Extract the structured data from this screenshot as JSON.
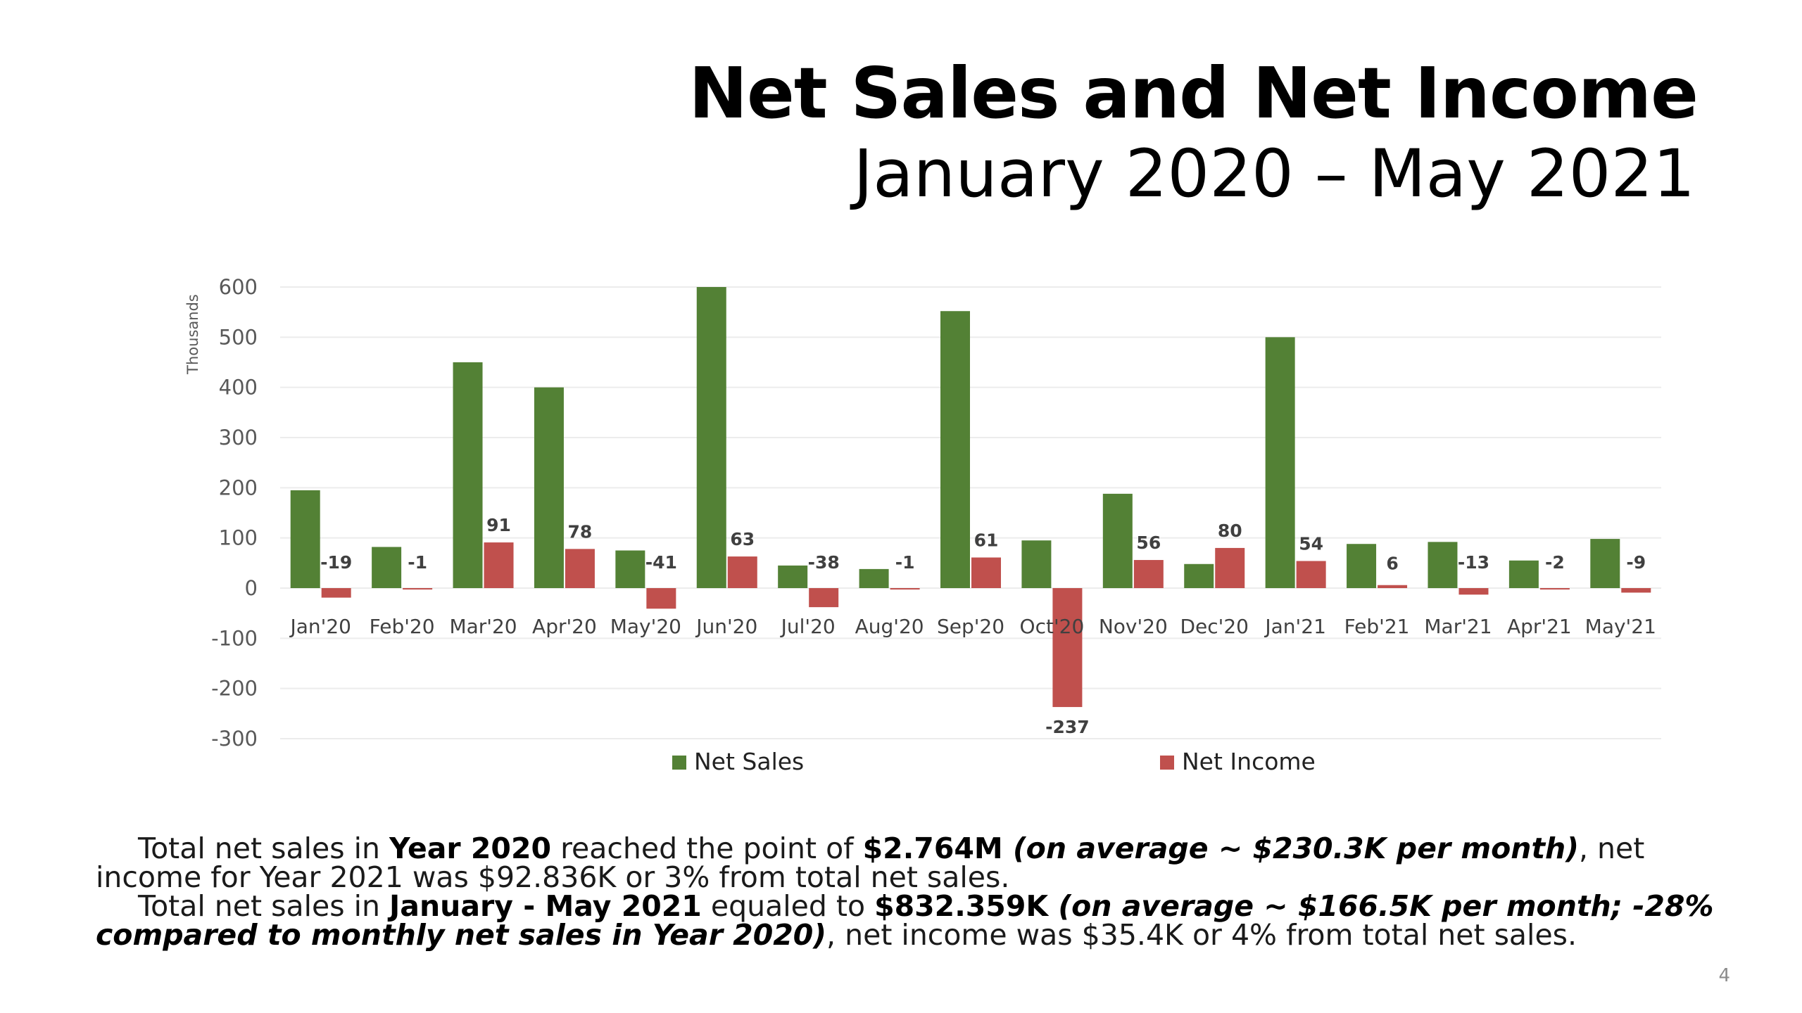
{
  "slide": {
    "title": "Net Sales and Net Income",
    "subtitle": "January 2020 – May 2021",
    "page_number": "4"
  },
  "summary": {
    "p1_intro": "Total net sales in ",
    "p1_year": "Year 2020",
    "p1_mid": " reached the point of ",
    "p1_total": "$2.764M",
    "p1_avg": " (on average ~ $230.3K per month)",
    "p1_end": ", net income for Year 2021 was $92.836K or 3% from total net sales.",
    "p2_intro": "Total net sales in ",
    "p2_period": "January - May 2021",
    "p2_mid": " equaled to ",
    "p2_total": "$832.359K",
    "p2_avg": " (on average ~ $166.5K per month; -28% compared to monthly net sales in Year 2020)",
    "p2_end": ", net income was $35.4K or 4% from total net sales."
  },
  "colors": {
    "net_sales": "#538135",
    "net_income": "#c0504d",
    "gridline": "#ececec"
  },
  "chart_data": {
    "type": "bar",
    "title": "",
    "xlabel": "",
    "ylabel": "Thousands",
    "ylim": [
      -300,
      600
    ],
    "yticks": [
      -300,
      -200,
      -100,
      0,
      100,
      200,
      300,
      400,
      500,
      600
    ],
    "grid": true,
    "legend_position": "bottom",
    "categories": [
      "Jan'20",
      "Feb'20",
      "Mar'20",
      "Apr'20",
      "May'20",
      "Jun'20",
      "Jul'20",
      "Aug'20",
      "Sep'20",
      "Oct'20",
      "Nov'20",
      "Dec'20",
      "Jan'21",
      "Feb'21",
      "Mar'21",
      "Apr'21",
      "May'21"
    ],
    "series": [
      {
        "name": "Net Sales",
        "values": [
          195,
          82,
          450,
          400,
          75,
          600,
          45,
          38,
          552,
          95,
          188,
          48,
          500,
          88,
          92,
          55,
          98
        ]
      },
      {
        "name": "Net Income",
        "values": [
          -19,
          -1,
          91,
          78,
          -41,
          63,
          -38,
          -1,
          61,
          -237,
          56,
          80,
          54,
          6,
          -13,
          -2,
          -9
        ],
        "data_labels": [
          "-19",
          "-1",
          "91",
          "78",
          "-41",
          "63",
          "-38",
          "-1",
          "61",
          "-237",
          "56",
          "80",
          "54",
          "6",
          "-13",
          "-2",
          "-9"
        ]
      }
    ]
  }
}
